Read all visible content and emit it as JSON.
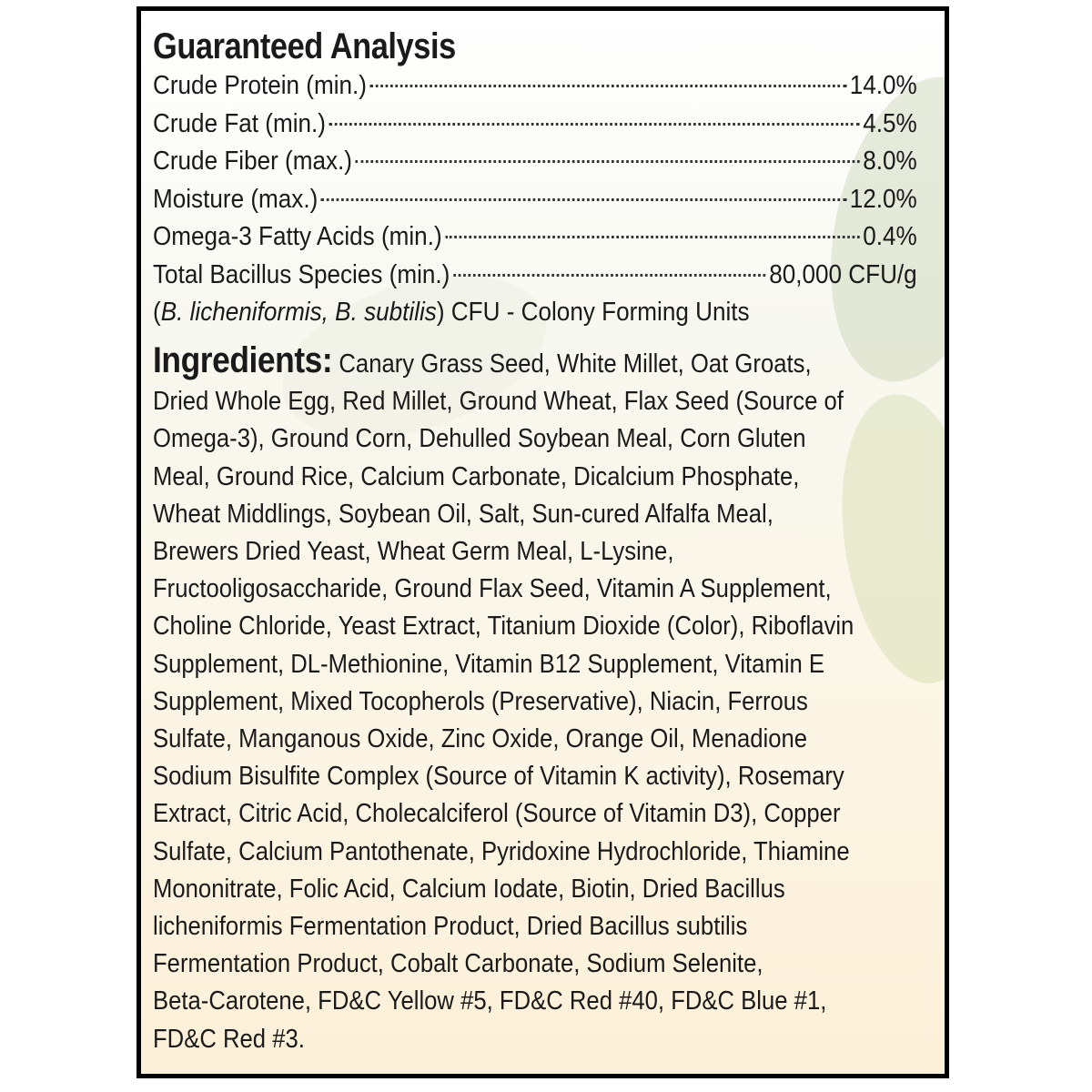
{
  "guaranteed_analysis": {
    "title": "Guaranteed Analysis",
    "rows": [
      {
        "name": "Crude Protein (min.)",
        "value": "14.0%"
      },
      {
        "name": "Crude Fat (min.)",
        "value": "4.5%"
      },
      {
        "name": "Crude Fiber (max.)",
        "value": "8.0%"
      },
      {
        "name": "Moisture (max.)",
        "value": "12.0%"
      },
      {
        "name": "Omega-3 Fatty Acids (min.)",
        "value": "0.4%"
      },
      {
        "name": "Total Bacillus Species (min.)",
        "value": "80,000 CFU/g"
      }
    ],
    "note_open": "(",
    "note_species": "B. licheniformis, B. subtilis",
    "note_close": ")",
    "note_text": " CFU - Colony Forming Units"
  },
  "ingredients": {
    "label": "Ingredients:",
    "lines": [
      " Canary Grass Seed, White Millet, Oat Groats,",
      "Dried Whole Egg, Red Millet, Ground Wheat, Flax Seed (Source of",
      "Omega-3), Ground Corn, Dehulled Soybean Meal, Corn Gluten",
      "Meal, Ground Rice, Calcium Carbonate, Dicalcium Phosphate,",
      "Wheat Middlings, Soybean Oil, Salt, Sun-cured Alfalfa Meal,",
      "Brewers Dried Yeast, Wheat Germ Meal, L-Lysine,",
      "Fructooligosaccharide, Ground Flax Seed, Vitamin A Supplement,",
      "Choline Chloride, Yeast Extract, Titanium Dioxide (Color), Riboflavin",
      "Supplement, DL-Methionine, Vitamin B12 Supplement, Vitamin E",
      "Supplement, Mixed Tocopherols (Preservative), Niacin, Ferrous",
      "Sulfate, Manganous Oxide, Zinc Oxide, Orange Oil, Menadione",
      "Sodium Bisulfite Complex (Source of Vitamin K activity), Rosemary",
      "Extract, Citric Acid, Cholecalciferol (Source of Vitamin D3), Copper",
      "Sulfate, Calcium Pantothenate, Pyridoxine Hydrochloride, Thiamine",
      "Mononitrate, Folic Acid, Calcium Iodate, Biotin, Dried Bacillus",
      "licheniformis Fermentation Product, Dried Bacillus subtilis",
      "Fermentation Product, Cobalt Carbonate, Sodium Selenite,",
      "Beta-Carotene, FD&C Yellow #5, FD&C Red #40, FD&C Blue #1,",
      "FD&C Red #3."
    ]
  }
}
